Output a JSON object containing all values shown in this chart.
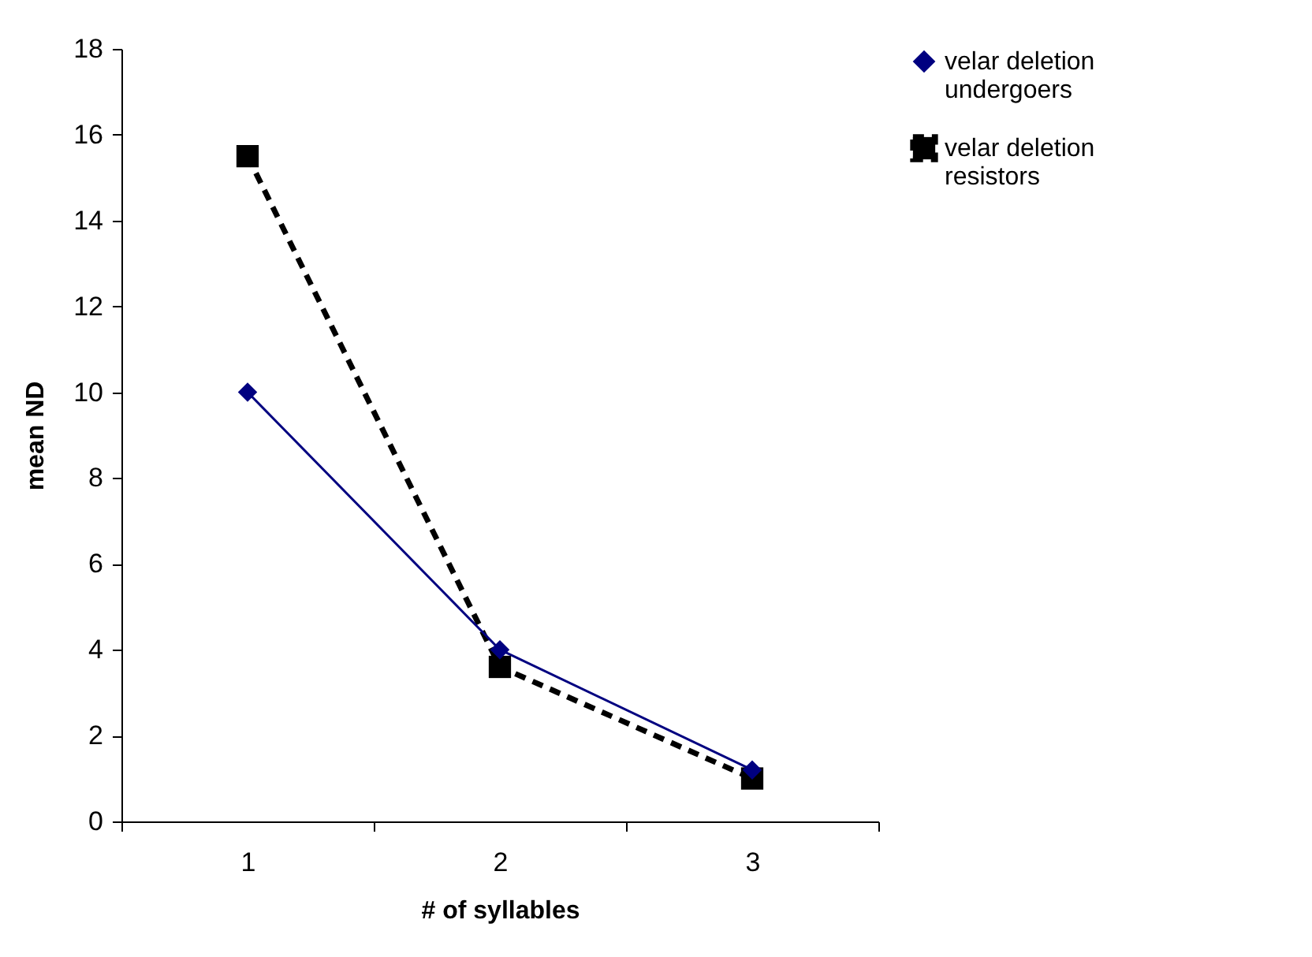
{
  "chart_data": {
    "type": "line",
    "xlabel": "# of syllables",
    "ylabel": "mean ND",
    "categories": [
      "1",
      "2",
      "3"
    ],
    "series": [
      {
        "name": "velar deletion undergoers",
        "color": "#000080",
        "marker": "diamond",
        "line_style": "solid",
        "values": [
          10,
          4,
          1.2
        ]
      },
      {
        "name": "velar deletion resistors",
        "color": "#000000",
        "marker": "square",
        "line_style": "dashed",
        "values": [
          15.5,
          3.6,
          1.0
        ]
      }
    ],
    "ylim": [
      0,
      18
    ],
    "yticks": [
      0,
      2,
      4,
      6,
      8,
      10,
      12,
      14,
      16,
      18
    ],
    "grid": false,
    "legend": "right"
  }
}
